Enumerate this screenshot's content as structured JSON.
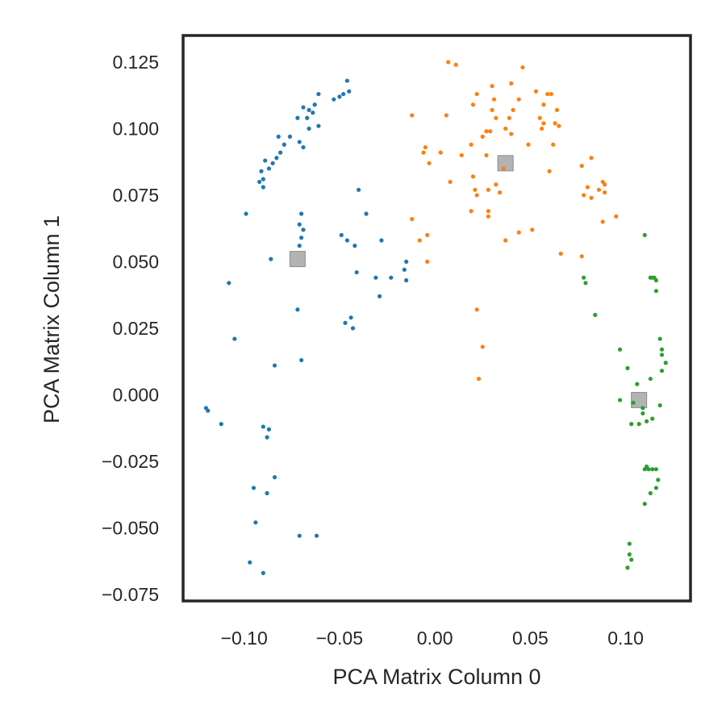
{
  "chart_data": {
    "type": "scatter",
    "title": "",
    "xlabel": "PCA Matrix Column 0",
    "ylabel": "PCA Matrix Column 1",
    "xlim": [
      -0.132,
      0.134
    ],
    "ylim": [
      -0.0775,
      0.135
    ],
    "xticks": [
      -0.1,
      -0.05,
      0.0,
      0.05,
      0.1
    ],
    "xtick_labels": [
      "−0.10",
      "−0.05",
      "0.00",
      "0.05",
      "0.10"
    ],
    "yticks": [
      -0.075,
      -0.05,
      -0.025,
      0.0,
      0.025,
      0.05,
      0.075,
      0.1,
      0.125
    ],
    "ytick_labels": [
      "−0.075",
      "−0.050",
      "−0.025",
      "0.000",
      "0.025",
      "0.050",
      "0.075",
      "0.100",
      "0.125"
    ],
    "grid": false,
    "legend": "none",
    "series": [
      {
        "color": "#1f77b4",
        "points": [
          [
            -0.046,
            0.118
          ],
          [
            -0.045,
            0.114
          ],
          [
            -0.048,
            0.113
          ],
          [
            -0.05,
            0.112
          ],
          [
            -0.053,
            0.111
          ],
          [
            -0.061,
            0.113
          ],
          [
            -0.063,
            0.109
          ],
          [
            -0.064,
            0.106
          ],
          [
            -0.069,
            0.108
          ],
          [
            -0.066,
            0.107
          ],
          [
            -0.067,
            0.104
          ],
          [
            -0.072,
            0.104
          ],
          [
            -0.061,
            0.101
          ],
          [
            -0.066,
            0.1
          ],
          [
            -0.071,
            0.095
          ],
          [
            -0.076,
            0.097
          ],
          [
            -0.082,
            0.097
          ],
          [
            -0.079,
            0.094
          ],
          [
            -0.081,
            0.091
          ],
          [
            -0.083,
            0.089
          ],
          [
            -0.085,
            0.087
          ],
          [
            -0.087,
            0.085
          ],
          [
            -0.089,
            0.088
          ],
          [
            -0.091,
            0.084
          ],
          [
            -0.09,
            0.081
          ],
          [
            -0.092,
            0.08
          ],
          [
            -0.09,
            0.078
          ],
          [
            -0.069,
            0.093
          ],
          [
            -0.099,
            0.068
          ],
          [
            -0.04,
            0.077
          ],
          [
            -0.07,
            0.068
          ],
          [
            -0.071,
            0.064
          ],
          [
            -0.069,
            0.062
          ],
          [
            -0.07,
            0.059
          ],
          [
            -0.071,
            0.056
          ],
          [
            -0.036,
            0.068
          ],
          [
            -0.049,
            0.06
          ],
          [
            -0.046,
            0.058
          ],
          [
            -0.042,
            0.056
          ],
          [
            -0.028,
            0.058
          ],
          [
            -0.015,
            0.05
          ],
          [
            -0.041,
            0.046
          ],
          [
            -0.016,
            0.047
          ],
          [
            -0.031,
            0.044
          ],
          [
            -0.023,
            0.044
          ],
          [
            -0.015,
            0.043
          ],
          [
            -0.029,
            0.037
          ],
          [
            -0.086,
            0.051
          ],
          [
            -0.108,
            0.042
          ],
          [
            -0.072,
            0.032
          ],
          [
            -0.044,
            0.029
          ],
          [
            -0.047,
            0.027
          ],
          [
            -0.043,
            0.025
          ],
          [
            -0.105,
            0.021
          ],
          [
            -0.07,
            0.013
          ],
          [
            -0.084,
            0.011
          ],
          [
            -0.12,
            -0.005
          ],
          [
            -0.119,
            -0.006
          ],
          [
            -0.112,
            -0.011
          ],
          [
            -0.09,
            -0.012
          ],
          [
            -0.087,
            -0.013
          ],
          [
            -0.088,
            -0.016
          ],
          [
            -0.084,
            -0.031
          ],
          [
            -0.095,
            -0.035
          ],
          [
            -0.088,
            -0.037
          ],
          [
            -0.094,
            -0.048
          ],
          [
            -0.071,
            -0.053
          ],
          [
            -0.062,
            -0.053
          ],
          [
            -0.097,
            -0.063
          ],
          [
            -0.09,
            -0.067
          ]
        ]
      },
      {
        "color": "#ff7f0e",
        "points": [
          [
            0.007,
            0.125
          ],
          [
            0.011,
            0.124
          ],
          [
            0.046,
            0.123
          ],
          [
            0.04,
            0.117
          ],
          [
            0.03,
            0.116
          ],
          [
            0.053,
            0.114
          ],
          [
            0.059,
            0.113
          ],
          [
            0.061,
            0.113
          ],
          [
            0.022,
            0.113
          ],
          [
            0.031,
            0.111
          ],
          [
            0.044,
            0.111
          ],
          [
            0.02,
            0.109
          ],
          [
            0.057,
            0.109
          ],
          [
            0.03,
            0.107
          ],
          [
            0.041,
            0.107
          ],
          [
            0.064,
            0.107
          ],
          [
            -0.012,
            0.105
          ],
          [
            0.006,
            0.105
          ],
          [
            0.032,
            0.104
          ],
          [
            0.039,
            0.104
          ],
          [
            0.055,
            0.104
          ],
          [
            0.057,
            0.102
          ],
          [
            0.063,
            0.102
          ],
          [
            0.065,
            0.101
          ],
          [
            0.056,
            0.1
          ],
          [
            0.029,
            0.099
          ],
          [
            0.037,
            0.1
          ],
          [
            0.027,
            0.099
          ],
          [
            0.04,
            0.098
          ],
          [
            0.025,
            0.097
          ],
          [
            0.019,
            0.094
          ],
          [
            0.049,
            0.094
          ],
          [
            -0.005,
            0.093
          ],
          [
            0.062,
            0.094
          ],
          [
            -0.006,
            0.091
          ],
          [
            0.003,
            0.091
          ],
          [
            0.014,
            0.09
          ],
          [
            0.027,
            0.09
          ],
          [
            0.082,
            0.089
          ],
          [
            -0.003,
            0.087
          ],
          [
            0.077,
            0.086
          ],
          [
            0.036,
            0.085
          ],
          [
            0.02,
            0.082
          ],
          [
            0.06,
            0.084
          ],
          [
            0.008,
            0.08
          ],
          [
            0.032,
            0.079
          ],
          [
            0.088,
            0.08
          ],
          [
            0.089,
            0.079
          ],
          [
            0.08,
            0.078
          ],
          [
            0.021,
            0.077
          ],
          [
            0.028,
            0.077
          ],
          [
            0.086,
            0.077
          ],
          [
            0.034,
            0.076
          ],
          [
            0.022,
            0.075
          ],
          [
            0.089,
            0.076
          ],
          [
            0.078,
            0.075
          ],
          [
            0.082,
            0.074
          ],
          [
            0.019,
            0.069
          ],
          [
            0.028,
            0.069
          ],
          [
            0.095,
            0.067
          ],
          [
            0.028,
            0.067
          ],
          [
            0.088,
            0.065
          ],
          [
            -0.012,
            0.066
          ],
          [
            0.044,
            0.061
          ],
          [
            0.051,
            0.062
          ],
          [
            -0.004,
            0.06
          ],
          [
            -0.008,
            0.058
          ],
          [
            0.037,
            0.058
          ],
          [
            0.066,
            0.053
          ],
          [
            0.077,
            0.052
          ],
          [
            -0.004,
            0.05
          ],
          [
            0.022,
            0.032
          ],
          [
            0.025,
            0.018
          ],
          [
            0.023,
            0.006
          ]
        ]
      },
      {
        "color": "#2ca02c",
        "points": [
          [
            0.11,
            0.06
          ],
          [
            0.113,
            0.044
          ],
          [
            0.114,
            0.044
          ],
          [
            0.115,
            0.044
          ],
          [
            0.116,
            0.043
          ],
          [
            0.078,
            0.044
          ],
          [
            0.079,
            0.042
          ],
          [
            0.116,
            0.039
          ],
          [
            0.084,
            0.03
          ],
          [
            0.118,
            0.021
          ],
          [
            0.097,
            0.017
          ],
          [
            0.119,
            0.017
          ],
          [
            0.119,
            0.015
          ],
          [
            0.121,
            0.012
          ],
          [
            0.101,
            0.01
          ],
          [
            0.119,
            0.009
          ],
          [
            0.113,
            0.006
          ],
          [
            0.106,
            0.004
          ],
          [
            0.097,
            -0.002
          ],
          [
            0.104,
            -0.003
          ],
          [
            0.118,
            -0.004
          ],
          [
            0.109,
            -0.005
          ],
          [
            0.109,
            -0.007
          ],
          [
            0.111,
            -0.01
          ],
          [
            0.107,
            -0.011
          ],
          [
            0.103,
            -0.011
          ],
          [
            0.114,
            -0.009
          ],
          [
            0.111,
            -0.027
          ],
          [
            0.11,
            -0.028
          ],
          [
            0.114,
            -0.028
          ],
          [
            0.116,
            -0.028
          ],
          [
            0.112,
            -0.028
          ],
          [
            0.117,
            -0.032
          ],
          [
            0.116,
            -0.035
          ],
          [
            0.113,
            -0.037
          ],
          [
            0.11,
            -0.041
          ],
          [
            0.102,
            -0.056
          ],
          [
            0.102,
            -0.06
          ],
          [
            0.103,
            -0.062
          ],
          [
            0.101,
            -0.065
          ]
        ]
      }
    ],
    "centroids": {
      "color": "#a6a6a6",
      "points": [
        [
          -0.072,
          0.051
        ],
        [
          0.037,
          0.087
        ],
        [
          0.107,
          -0.002
        ]
      ]
    }
  }
}
